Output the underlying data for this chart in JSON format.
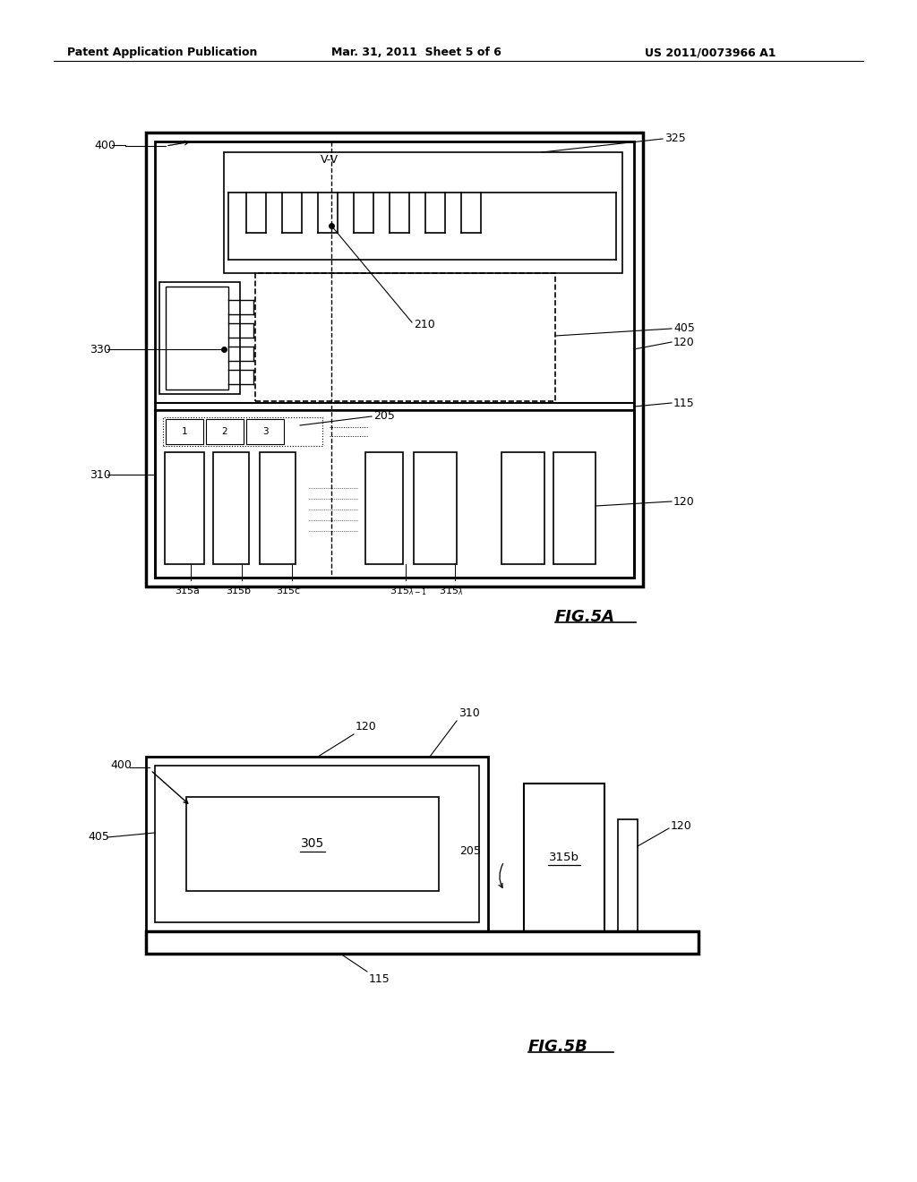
{
  "bg_color": "#ffffff",
  "line_color": "#000000",
  "header_left": "Patent Application Publication",
  "header_center": "Mar. 31, 2011  Sheet 5 of 6",
  "header_right": "US 2011/0073966 A1"
}
